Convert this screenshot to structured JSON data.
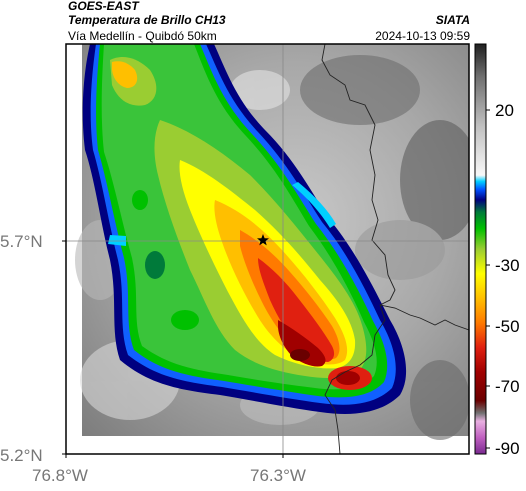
{
  "header": {
    "satellite": "GOES-EAST",
    "product": "Temperatura de Brillo CH13",
    "region": "Vía Medellín - Quibdó 50km",
    "organization": "SIATA",
    "timestamp": "2024-10-13 09:59"
  },
  "map": {
    "lat_ticks": [
      "5.7°N",
      "5.2°N"
    ],
    "lon_ticks": [
      "76.8°W",
      "76.3°W"
    ],
    "marker": "star-icon"
  },
  "colorbar": {
    "ticks": [
      "20",
      "-30",
      "-50",
      "-70",
      "-90"
    ]
  },
  "colors": {
    "frame": "#000000",
    "gridline": "#888888",
    "border": "#222222",
    "cold_core": "#b00000",
    "edge": "#000080"
  }
}
